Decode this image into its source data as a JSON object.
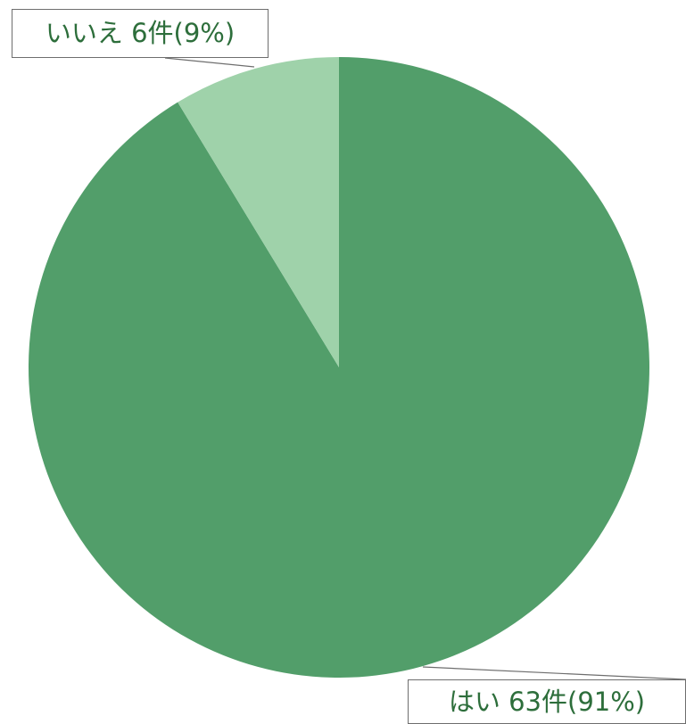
{
  "chart_data": {
    "type": "pie",
    "title": "",
    "slices": [
      {
        "label": "はい",
        "count": 63,
        "count_text": "63件",
        "percent": 91,
        "percent_text": "(91%)",
        "color": "#529e6a"
      },
      {
        "label": "いいえ",
        "count": 6,
        "count_text": "6件",
        "percent": 9,
        "percent_text": "(9%)",
        "color": "#9fd2aa"
      }
    ],
    "start_angle": "12 o'clock",
    "direction": "clockwise",
    "legend": "none",
    "label_color": "#2d6e3b"
  }
}
